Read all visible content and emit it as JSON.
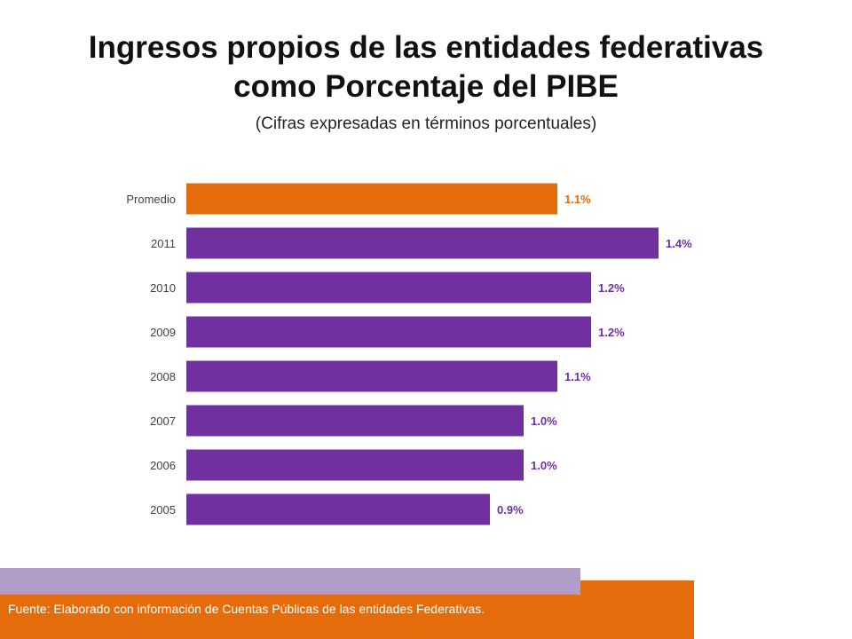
{
  "header": {
    "title_line1": "Ingresos propios de las entidades federativas",
    "title_line2": "como Porcentaje del PIBE",
    "subtitle": "(Cifras expresadas en términos porcentuales)"
  },
  "chart_data": {
    "type": "bar",
    "orientation": "horizontal",
    "categories": [
      "Promedio",
      "2011",
      "2010",
      "2009",
      "2008",
      "2007",
      "2006",
      "2005"
    ],
    "values": [
      1.1,
      1.4,
      1.2,
      1.2,
      1.1,
      1.0,
      1.0,
      0.9
    ],
    "value_labels": [
      "1.1%",
      "1.4%",
      "1.2%",
      "1.2%",
      "1.1%",
      "1.0%",
      "1.0%",
      "0.9%"
    ],
    "highlight_category": "Promedio",
    "colors": {
      "highlight": "#e46c0a",
      "bar": "#7030a0",
      "tick_label": "#404040"
    },
    "grid": false,
    "legend": "none"
  },
  "footer": {
    "source": "Fuente: Elaborado con información de Cuentas Públicas de las entidades Federativas."
  }
}
